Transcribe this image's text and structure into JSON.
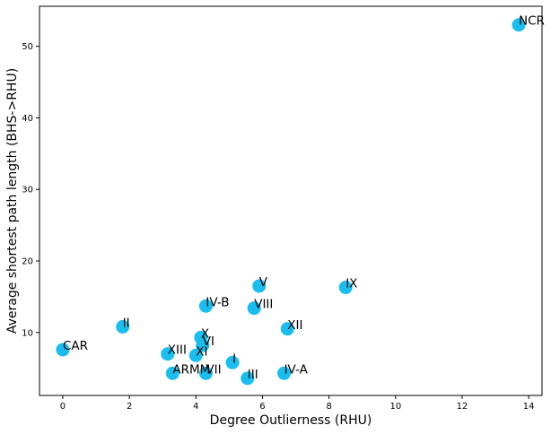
{
  "chart_data": {
    "type": "scatter",
    "xlabel": "Degree Outlierness (RHU)",
    "ylabel": "Average shortest path length (BHS->RHU)",
    "xlim": [
      -0.7,
      14.4
    ],
    "ylim": [
      1.2,
      55.6
    ],
    "xticks": [
      0,
      2,
      4,
      6,
      8,
      10,
      12,
      14
    ],
    "yticks": [
      10,
      20,
      30,
      40,
      50
    ],
    "grid": false,
    "marker_color": "#19beef",
    "points": [
      {
        "label": "NCR",
        "x": 13.7,
        "y": 53.0
      },
      {
        "label": "CAR",
        "x": 0.0,
        "y": 7.6
      },
      {
        "label": "II",
        "x": 1.8,
        "y": 10.8
      },
      {
        "label": "V",
        "x": 5.9,
        "y": 16.5
      },
      {
        "label": "IX",
        "x": 8.5,
        "y": 16.3
      },
      {
        "label": "IV-B",
        "x": 4.3,
        "y": 13.7
      },
      {
        "label": "VIII",
        "x": 5.75,
        "y": 13.4
      },
      {
        "label": "XII",
        "x": 6.75,
        "y": 10.5
      },
      {
        "label": "X",
        "x": 4.15,
        "y": 9.3
      },
      {
        "label": "VI",
        "x": 4.2,
        "y": 8.2
      },
      {
        "label": "XIII",
        "x": 3.15,
        "y": 7.0
      },
      {
        "label": "XI",
        "x": 4.0,
        "y": 6.8
      },
      {
        "label": "I",
        "x": 5.1,
        "y": 5.8
      },
      {
        "label": "ARMM",
        "x": 3.3,
        "y": 4.3
      },
      {
        "label": "VII",
        "x": 4.3,
        "y": 4.3
      },
      {
        "label": "III",
        "x": 5.55,
        "y": 3.6
      },
      {
        "label": "IV-A",
        "x": 6.65,
        "y": 4.3
      }
    ]
  }
}
